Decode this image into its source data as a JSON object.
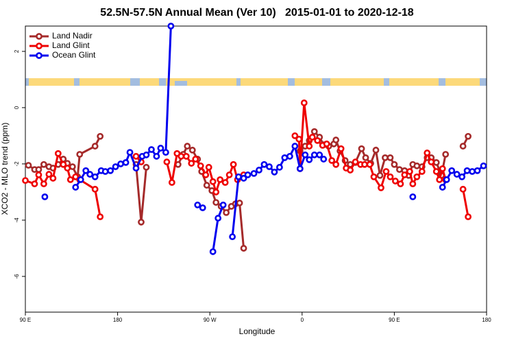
{
  "chart_data": {
    "type": "line",
    "title": "52.5N-57.5N Annual Mean (Ver 10)   2015-01-01 to 2020-12-18",
    "x_label": "Longitude",
    "y_label": "XCO2 - MLO trend (ppm)",
    "xlim": [
      90,
      540
    ],
    "ylim": [
      -7.27,
      2.9
    ],
    "xticks": [
      {
        "value": 90,
        "label": "90 E"
      },
      180,
      {
        "value": 270,
        "label": "90 W"
      },
      {
        "value": 360,
        "label": "0"
      },
      {
        "value": 450,
        "label": "90 E"
      },
      {
        "value": 540,
        "label": "180"
      }
    ],
    "yticks": [
      2,
      0,
      -2,
      -4,
      -6
    ],
    "grid": false,
    "legend": "top-left",
    "series": [
      {
        "name": "Land Nadir",
        "color": "#a52a2a",
        "x": [
          93,
          99,
          103,
          108,
          113,
          117,
          122,
          127,
          131,
          136,
          141,
          143,
          158,
          163,
          null,
          198,
          203,
          208,
          null,
          239,
          244,
          248,
          253,
          258,
          262,
          267,
          272,
          276,
          281,
          286,
          291,
          295,
          299,
          303,
          null,
          358,
          363,
          367,
          372,
          377,
          381,
          386,
          391,
          393,
          397,
          402,
          407,
          412,
          418,
          422,
          427,
          432,
          436,
          441,
          446,
          450,
          455,
          460,
          464,
          468,
          472,
          477,
          482,
          486,
          491,
          496,
          500,
          null,
          517,
          522
        ],
        "values": [
          -2.05,
          -2.2,
          -2.2,
          -2.02,
          -2.1,
          -2.15,
          -2.02,
          -1.83,
          -1.98,
          -2.1,
          -2.46,
          -1.66,
          -1.37,
          -1.02,
          null,
          -2.02,
          -4.07,
          -2.12,
          null,
          -2.02,
          -1.66,
          -1.37,
          -1.51,
          -1.83,
          -2.27,
          -2.76,
          -2.95,
          -3.37,
          -3.51,
          -3.73,
          -3.51,
          -3.42,
          -3.39,
          -5.0,
          null,
          -1.54,
          -1.37,
          -1.17,
          -0.85,
          -1.05,
          -1.32,
          -1.37,
          -1.29,
          -1.15,
          -1.54,
          -1.88,
          -2.02,
          -1.95,
          -1.46,
          -1.78,
          -1.98,
          -1.51,
          -2.41,
          -1.78,
          -1.78,
          -2.02,
          -2.2,
          -2.24,
          -2.41,
          -2.02,
          -2.07,
          -2.1,
          -1.78,
          -1.78,
          -1.95,
          -2.41,
          -1.66,
          null,
          -1.37,
          -1.02
        ]
      },
      {
        "name": "Land Glint",
        "color": "#ee0000",
        "x": [
          90,
          99,
          103,
          108,
          113,
          117,
          122,
          127,
          131,
          134,
          139,
          143,
          158,
          163,
          null,
          198,
          203,
          null,
          228,
          233,
          238,
          242,
          247,
          252,
          256,
          261,
          266,
          269,
          273,
          276,
          280,
          285,
          289,
          293,
          297,
          303,
          null,
          353,
          357,
          358,
          362,
          367,
          370,
          375,
          380,
          384,
          389,
          393,
          398,
          403,
          407,
          412,
          417,
          421,
          426,
          430,
          437,
          442,
          446,
          451,
          456,
          460,
          465,
          468,
          472,
          477,
          482,
          486,
          491,
          494,
          497,
          500,
          null,
          517,
          522
        ],
        "values": [
          -2.59,
          -2.71,
          -2.39,
          -2.71,
          -2.37,
          -2.51,
          -1.63,
          -2.02,
          -2.15,
          -2.56,
          -2.46,
          -2.56,
          -2.9,
          -3.88,
          null,
          -1.73,
          -1.93,
          null,
          -1.93,
          -2.66,
          -1.63,
          -1.73,
          -1.73,
          -1.98,
          -1.83,
          -2.07,
          -2.39,
          -2.12,
          -2.63,
          -3.0,
          -2.56,
          -2.66,
          -2.39,
          -2.02,
          -2.56,
          -2.39,
          null,
          -1.0,
          -1.12,
          -2.17,
          0.17,
          -1.37,
          -1.05,
          -1.17,
          -1.34,
          -1.29,
          -1.88,
          -2.02,
          -1.46,
          -2.15,
          -2.22,
          -1.93,
          -2.02,
          -2.02,
          -2.02,
          -2.46,
          -2.85,
          -2.27,
          -2.46,
          -2.61,
          -2.71,
          -2.39,
          -2.27,
          -2.71,
          -2.46,
          -2.27,
          -1.61,
          -1.93,
          -2.27,
          -2.56,
          -2.17,
          -2.56,
          null,
          -2.9,
          -3.88
        ]
      },
      {
        "name": "Ocean Glint",
        "color": "#0000ee",
        "x": [
          109,
          null,
          139,
          144,
          149,
          153,
          158,
          164,
          168,
          173,
          178,
          183,
          188,
          192,
          198,
          204,
          208,
          213,
          218,
          222,
          227,
          232,
          null,
          258,
          263,
          null,
          273,
          278,
          283,
          null,
          292,
          298,
          303,
          307,
          313,
          318,
          323,
          328,
          333,
          338,
          343,
          348,
          353,
          358,
          363,
          367,
          372,
          377,
          381,
          null,
          468,
          null,
          497,
          501,
          506,
          511,
          516,
          521,
          526,
          531,
          537
        ],
        "values": [
          -3.17,
          null,
          -2.83,
          -2.56,
          -2.24,
          -2.37,
          -2.46,
          -2.24,
          -2.27,
          -2.24,
          -2.1,
          -2.0,
          -1.95,
          -1.59,
          -2.15,
          -1.73,
          -1.68,
          -1.49,
          -1.73,
          -1.44,
          -1.59,
          2.9,
          null,
          -3.46,
          -3.56,
          null,
          -5.12,
          -3.93,
          -3.46,
          null,
          -4.59,
          -2.46,
          -2.51,
          -2.39,
          -2.34,
          -2.22,
          -2.02,
          -2.1,
          -2.29,
          -2.12,
          -1.78,
          -1.73,
          -1.37,
          -2.17,
          -1.68,
          -1.85,
          -1.68,
          -1.68,
          -1.83,
          null,
          -3.17,
          null,
          -2.83,
          -2.56,
          -2.24,
          -2.37,
          -2.46,
          -2.24,
          -2.27,
          -2.24,
          -2.07
        ]
      }
    ]
  }
}
